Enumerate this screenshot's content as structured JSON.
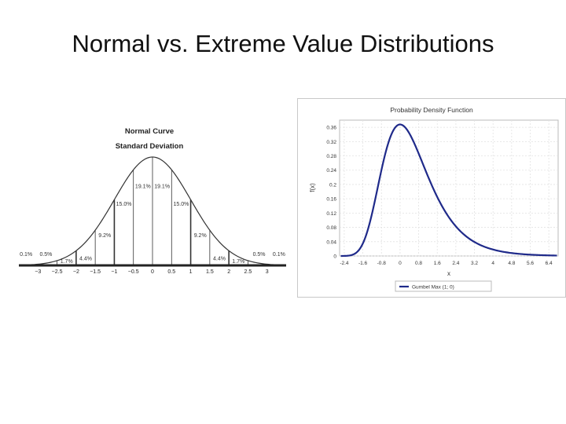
{
  "slide": {
    "title": "Normal vs. Extreme Value Distributions"
  },
  "chart_data": [
    {
      "type": "area",
      "title": "Normal Curve",
      "subtitle": "Standard Deviation",
      "x_ticks": [
        "−3",
        "−2.5",
        "−2",
        "−1.5",
        "−1",
        "−0.5",
        "0",
        "0.5",
        "1",
        "1.5",
        "2",
        "2.5",
        "3"
      ],
      "x_tick_values": [
        -3,
        -2.5,
        -2,
        -1.5,
        -1,
        -0.5,
        0,
        0.5,
        1,
        1.5,
        2,
        2.5,
        3
      ],
      "xlim": [
        -3.5,
        3.5
      ],
      "bands": [
        {
          "from": -3.5,
          "to": -3,
          "label": "0.1%"
        },
        {
          "from": -3,
          "to": -2.5,
          "label": "0.5%"
        },
        {
          "from": -2.5,
          "to": -2,
          "label": "1.7%"
        },
        {
          "from": -2,
          "to": -1.5,
          "label": "4.4%"
        },
        {
          "from": -1.5,
          "to": -1,
          "label": "9.2%"
        },
        {
          "from": -1,
          "to": -0.5,
          "label": "15.0%"
        },
        {
          "from": -0.5,
          "to": 0,
          "label": "19.1%"
        },
        {
          "from": 0,
          "to": 0.5,
          "label": "19.1%"
        },
        {
          "from": 0.5,
          "to": 1,
          "label": "15.0%"
        },
        {
          "from": 1,
          "to": 1.5,
          "label": "9.2%"
        },
        {
          "from": 1.5,
          "to": 2,
          "label": "4.4%"
        },
        {
          "from": 2,
          "to": 2.5,
          "label": "1.7%"
        },
        {
          "from": 2.5,
          "to": 3,
          "label": "0.5%"
        },
        {
          "from": 3,
          "to": 3.5,
          "label": "0.1%"
        }
      ],
      "grid": false
    },
    {
      "type": "line",
      "title": "Probability Density Function",
      "xlabel": "x",
      "ylabel": "f(x)",
      "xlim": [
        -2.6,
        6.8
      ],
      "ylim": [
        0,
        0.38
      ],
      "x_ticks": [
        "-2.4",
        "-1.6",
        "-0.8",
        "0",
        "0.8",
        "1.6",
        "2.4",
        "3.2",
        "4",
        "4.8",
        "5.6",
        "6.4"
      ],
      "x_tick_values": [
        -2.4,
        -1.6,
        -0.8,
        0,
        0.8,
        1.6,
        2.4,
        3.2,
        4,
        4.8,
        5.6,
        6.4
      ],
      "y_ticks": [
        "0",
        "0.04",
        "0.08",
        "0.12",
        "0.16",
        "0.2",
        "0.24",
        "0.28",
        "0.32",
        "0.36"
      ],
      "y_tick_values": [
        0,
        0.04,
        0.08,
        0.12,
        0.16,
        0.2,
        0.24,
        0.28,
        0.32,
        0.36
      ],
      "grid": true,
      "legend_position": "bottom",
      "series": [
        {
          "name": "Gumbel Max (1; 0)",
          "color": "#1f2a8a",
          "mu": 0,
          "sigma": 1
        }
      ]
    }
  ]
}
